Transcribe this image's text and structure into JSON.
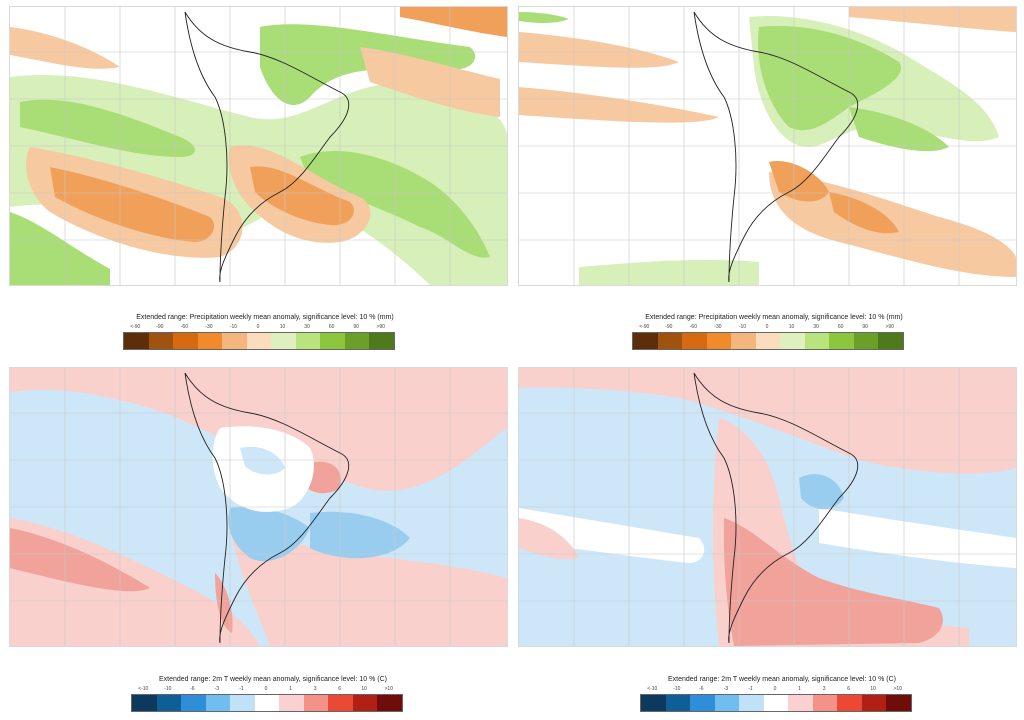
{
  "panels": {
    "precip_left": {
      "name": "precip-map-week-a"
    },
    "precip_right": {
      "name": "precip-map-week-b"
    },
    "temp_left": {
      "name": "temp-map-week-a"
    },
    "temp_right": {
      "name": "temp-map-week-b"
    }
  },
  "legends": {
    "precip": {
      "title": "Extended range: Precipitation weekly mean anomaly, significance level: 10 % (mm)",
      "ticks": [
        "<-90",
        "-90",
        "-60",
        "-30",
        "-10",
        "0",
        "10",
        "30",
        "60",
        "90",
        ">90"
      ],
      "colors": [
        "#5c2f0a",
        "#a0520f",
        "#d56a10",
        "#f08a2a",
        "#f5b67e",
        "#fbdcbf",
        "#dff0c0",
        "#b9e37d",
        "#8cc63e",
        "#6a9f28",
        "#4d7a1a"
      ]
    },
    "temp": {
      "title": "Extended range: 2m T weekly mean anomaly, significance level: 10 % (C)",
      "ticks": [
        "<-10",
        "-10",
        "-6",
        "-3",
        "-1",
        "0",
        "1",
        "3",
        "6",
        "10",
        ">10"
      ],
      "colors": [
        "#0b3a5e",
        "#0e5e98",
        "#2e8fd8",
        "#72bdf0",
        "#bfe2f8",
        "#ffffff",
        "#fbd0d0",
        "#f4928a",
        "#ea4a35",
        "#b21f14",
        "#6e0d0a"
      ]
    }
  },
  "colors": {
    "precip_wet_light": "#d7efb9",
    "precip_wet_mid": "#a9dd76",
    "precip_dry_light": "#f7c9a0",
    "precip_dry_mid": "#f1a05a",
    "precip_dry_dark": "#e07c25",
    "temp_warm_light": "#f9d0cc",
    "temp_warm_mid": "#f1a29b",
    "temp_cold_light": "#cde7f8",
    "temp_cold_mid": "#99cdf0",
    "grid": "#c8c8c8",
    "coast": "#222222"
  }
}
